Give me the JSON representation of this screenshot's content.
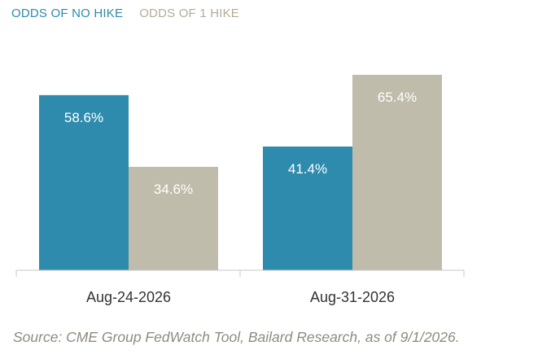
{
  "chart_data": {
    "type": "bar",
    "categories": [
      "Aug-24-2026",
      "Aug-31-2026"
    ],
    "series": [
      {
        "name": "ODDS OF NO HIKE",
        "values": [
          58.6,
          41.4
        ],
        "labels": [
          "58.6%",
          "41.4%"
        ],
        "color": "#2e8bad"
      },
      {
        "name": "ODDS OF 1 HIKE",
        "values": [
          34.6,
          65.4
        ],
        "labels": [
          "34.6%",
          "65.4%"
        ],
        "color": "#bfbcab"
      }
    ],
    "ylim": [
      0,
      70
    ],
    "grid": false,
    "legend": "top-left",
    "source": "Source: CME Group FedWatch Tool, Bailard Research, as of 9/1/2026."
  }
}
